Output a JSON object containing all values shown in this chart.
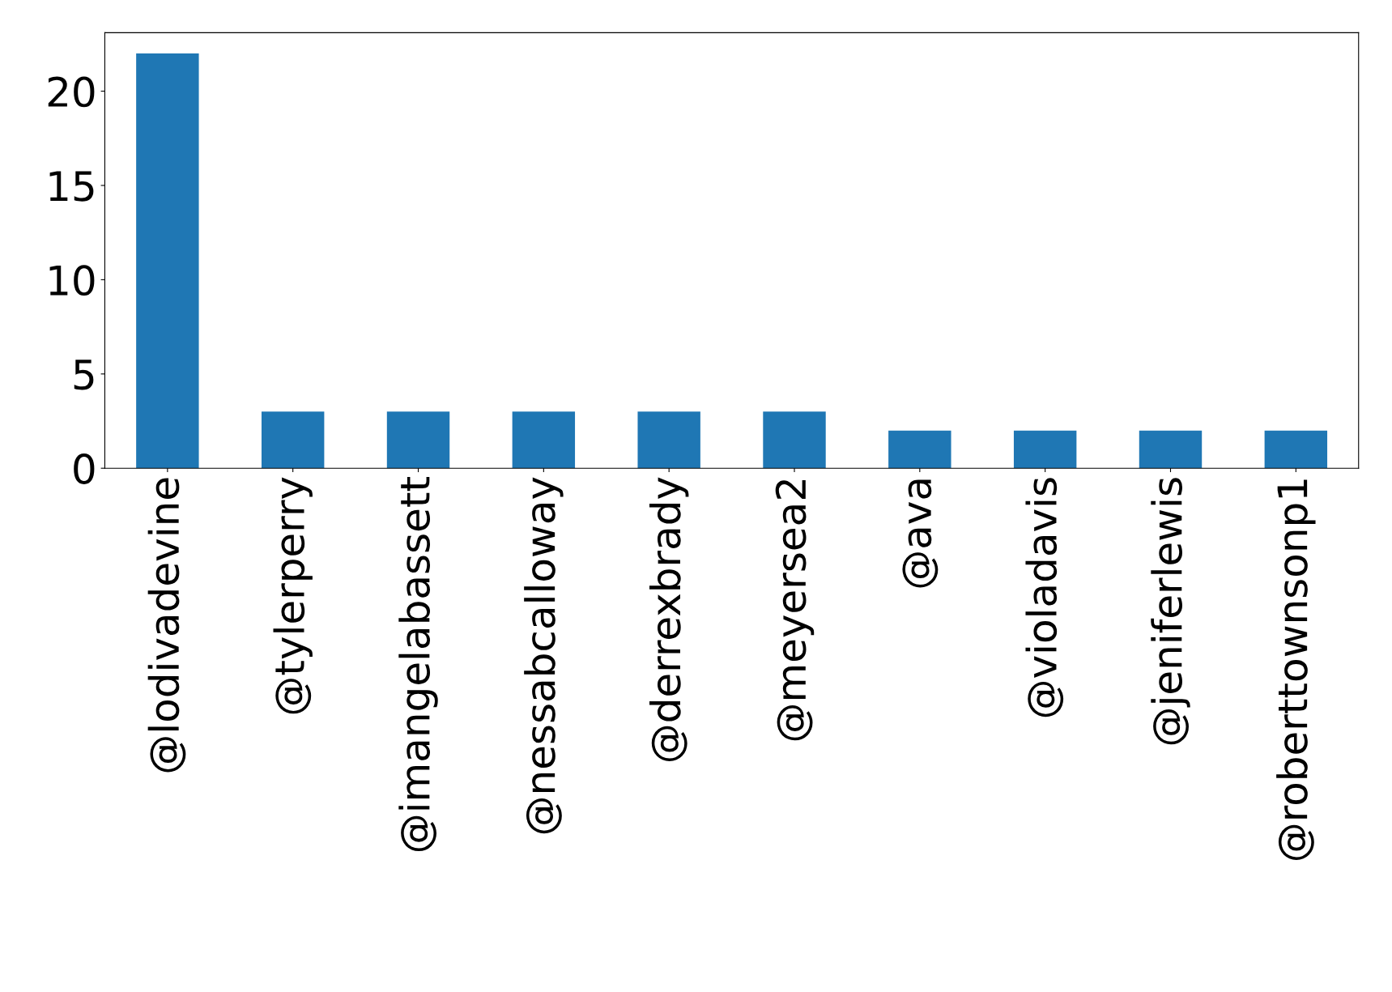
{
  "chart_data": {
    "type": "bar",
    "categories": [
      "@lodivadevine",
      "@tylerperry",
      "@imangelabassett",
      "@nessabcalloway",
      "@derrexbrady",
      "@meyersea2",
      "@ava",
      "@violadavis",
      "@jeniferlewis",
      "@roberttownsonp1"
    ],
    "values": [
      22,
      3,
      3,
      3,
      3,
      3,
      2,
      2,
      2,
      2
    ],
    "color": "#1f77b4",
    "ylim": [
      0,
      23.1
    ],
    "yticks": [
      0,
      5,
      10,
      15,
      20
    ],
    "grid": false,
    "legend": false
  }
}
